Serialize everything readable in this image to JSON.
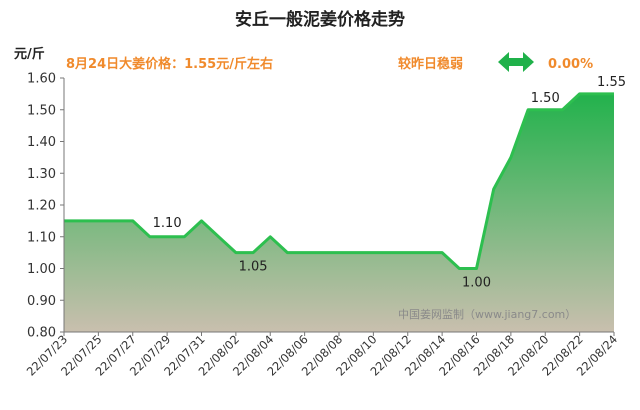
{
  "chart_data": {
    "type": "area",
    "title": "安丘一般泥姜价格走势",
    "ylabel": "元/斤",
    "info_left": "8月24日大姜价格：1.55元/斤左右",
    "info_right_label": "较昨日稳弱",
    "change_value": "0.00%",
    "watermark": "中国姜网监制（www.jiang7.com）",
    "ylim": [
      0.8,
      1.6
    ],
    "yticks": [
      "0.80",
      "0.90",
      "1.00",
      "1.10",
      "1.20",
      "1.30",
      "1.40",
      "1.50",
      "1.60"
    ],
    "xticks": [
      "22/07/23",
      "22/07/25",
      "22/07/27",
      "22/07/29",
      "22/07/31",
      "22/08/02",
      "22/08/04",
      "22/08/06",
      "22/08/08",
      "22/08/10",
      "22/08/12",
      "22/08/14",
      "22/08/16",
      "22/08/18",
      "22/08/20",
      "22/08/22",
      "22/08/24"
    ],
    "x": [
      "22/07/23",
      "22/07/24",
      "22/07/25",
      "22/07/26",
      "22/07/27",
      "22/07/28",
      "22/07/29",
      "22/07/30",
      "22/07/31",
      "22/08/01",
      "22/08/02",
      "22/08/03",
      "22/08/04",
      "22/08/05",
      "22/08/06",
      "22/08/07",
      "22/08/08",
      "22/08/09",
      "22/08/10",
      "22/08/11",
      "22/08/12",
      "22/08/13",
      "22/08/14",
      "22/08/15",
      "22/08/16",
      "22/08/17",
      "22/08/18",
      "22/08/19",
      "22/08/20",
      "22/08/21",
      "22/08/22",
      "22/08/23",
      "22/08/24"
    ],
    "values": [
      1.15,
      1.15,
      1.15,
      1.15,
      1.15,
      1.1,
      1.1,
      1.1,
      1.15,
      1.1,
      1.05,
      1.05,
      1.1,
      1.05,
      1.05,
      1.05,
      1.05,
      1.05,
      1.05,
      1.05,
      1.05,
      1.05,
      1.05,
      1.0,
      1.0,
      1.25,
      1.35,
      1.5,
      1.5,
      1.5,
      1.55,
      1.55,
      1.55
    ],
    "data_labels": [
      {
        "index": 6,
        "text": "1.10"
      },
      {
        "index": 11,
        "text": "1.05"
      },
      {
        "index": 24,
        "text": "1.00"
      },
      {
        "index": 28,
        "text": "1.50"
      },
      {
        "index": 32,
        "text": "1.55"
      }
    ],
    "colors": {
      "line": "#2dbf4f",
      "fill_top": "#22b24c",
      "fill_bottom": "#c9bfae",
      "info": "#f08a2c",
      "arrow": "#1fb14a"
    },
    "grid": false,
    "arrow_icon": "double-arrow-icon"
  }
}
